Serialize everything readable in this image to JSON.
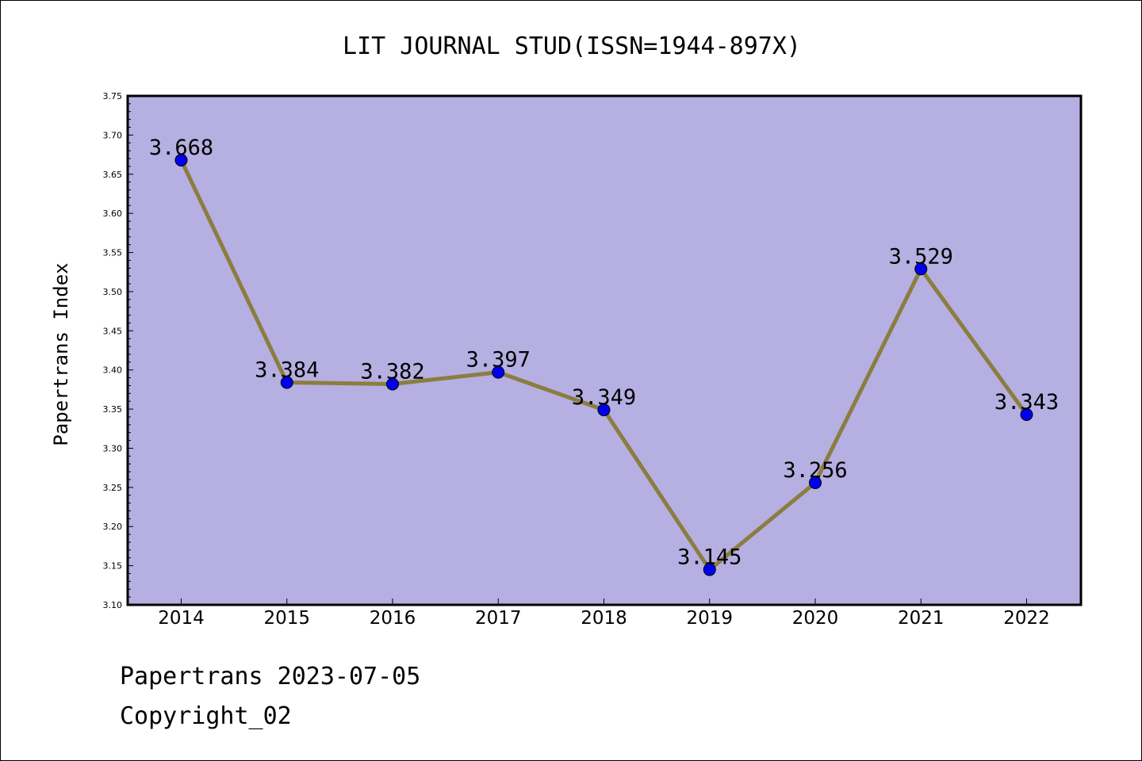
{
  "chart_data": {
    "type": "line",
    "title": "LIT JOURNAL STUD(ISSN=1944-897X)",
    "xlabel": "",
    "ylabel": "Papertrans Index",
    "categories": [
      "2014",
      "2015",
      "2016",
      "2017",
      "2018",
      "2019",
      "2020",
      "2021",
      "2022"
    ],
    "series": [
      {
        "values": [
          3.668,
          3.384,
          3.382,
          3.397,
          3.349,
          3.145,
          3.256,
          3.529,
          3.343
        ],
        "data_labels": [
          "3.668",
          "3.384",
          "3.382",
          "3.397",
          "3.349",
          "3.145",
          "3.256",
          "3.529",
          "3.343"
        ]
      }
    ],
    "ylim": [
      3.1,
      3.75
    ],
    "yticks": [
      "3.10",
      "3.15",
      "3.20",
      "3.25",
      "3.30",
      "3.35",
      "3.40",
      "3.45",
      "3.50",
      "3.55",
      "3.60",
      "3.65",
      "3.70",
      "3.75"
    ],
    "grid": false,
    "legend": "none",
    "colors": {
      "plot_background": "#b5afe2",
      "line": "#8b7d3f",
      "marker": "#0000ee"
    }
  },
  "footer": {
    "line1": "Papertrans 2023-07-05",
    "line2": "Copyright_02"
  }
}
